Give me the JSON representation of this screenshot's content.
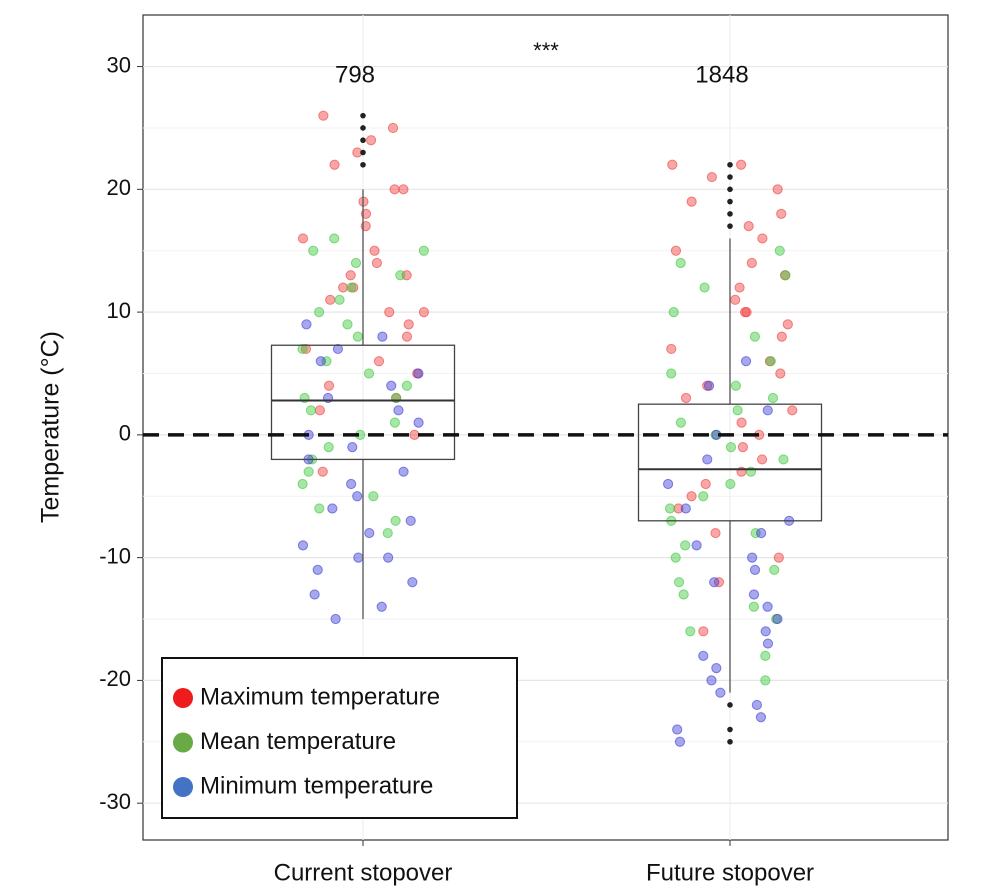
{
  "chart_data": {
    "type": "box",
    "y_label": "Temperature (°C)",
    "categories": [
      "Current stopover",
      "Future stopover"
    ],
    "n": [
      798,
      1848
    ],
    "annotation": "***",
    "hline": 0,
    "ylim": [
      -33,
      34.2
    ],
    "yticks": [
      -30,
      -20,
      -10,
      0,
      10,
      20,
      30
    ],
    "minor_yticks": [
      -25,
      -15,
      -5,
      5,
      15,
      25
    ],
    "grid": true,
    "legend_position": "lower left",
    "boxes": [
      {
        "q1": -2,
        "median": 2.8,
        "q3": 7.3,
        "whisker_low": -15,
        "whisker_high": 20,
        "outliers": [
          26,
          25,
          24,
          23,
          22
        ]
      },
      {
        "q1": -7,
        "median": -2.8,
        "q3": 2.5,
        "whisker_low": -21,
        "whisker_high": 16,
        "outliers": [
          22,
          21,
          20,
          19,
          18,
          17,
          -22,
          -24,
          -25
        ]
      }
    ],
    "series": [
      {
        "name": "Maximum temperature",
        "color": "#f03b3b",
        "legend_color": "#ee1c1c",
        "values": [
          [
            26,
            25,
            24,
            23,
            22,
            20,
            20,
            19,
            18,
            17,
            16,
            15,
            14,
            13,
            13,
            12,
            12,
            11,
            10,
            10,
            9,
            8,
            7,
            6,
            5,
            4,
            3,
            2,
            0,
            -3
          ],
          [
            22,
            22,
            21,
            20,
            19,
            18,
            17,
            16,
            15,
            14,
            13,
            12,
            11,
            10,
            10,
            9,
            8,
            7,
            6,
            5,
            4,
            3,
            2,
            1,
            0,
            -1,
            -2,
            -3,
            -4,
            -5,
            -6,
            -8,
            -10,
            -12,
            -16
          ]
        ]
      },
      {
        "name": "Mean temperature",
        "color": "#3cc83c",
        "legend_color": "#6aaa46",
        "values": [
          [
            16,
            15,
            15,
            14,
            13,
            12,
            11,
            10,
            9,
            8,
            7,
            6,
            5,
            4,
            3,
            3,
            2,
            1,
            0,
            -1,
            -2,
            -3,
            -4,
            -5,
            -6,
            -7,
            -8
          ],
          [
            15,
            14,
            13,
            12,
            10,
            8,
            6,
            5,
            4,
            3,
            2,
            1,
            0,
            -1,
            -2,
            -3,
            -4,
            -5,
            -6,
            -7,
            -8,
            -9,
            -10,
            -11,
            -12,
            -13,
            -14,
            -15,
            -16,
            -18,
            -20
          ]
        ]
      },
      {
        "name": "Minimum temperature",
        "color": "#3b3bd6",
        "legend_color": "#4472c4",
        "values": [
          [
            9,
            8,
            7,
            6,
            5,
            4,
            3,
            2,
            1,
            0,
            -1,
            -2,
            -3,
            -4,
            -5,
            -6,
            -7,
            -8,
            -9,
            -10,
            -10,
            -11,
            -12,
            -13,
            -14,
            -15
          ],
          [
            6,
            4,
            2,
            0,
            -2,
            -4,
            -6,
            -7,
            -8,
            -9,
            -10,
            -11,
            -12,
            -13,
            -14,
            -15,
            -16,
            -17,
            -18,
            -19,
            -20,
            -21,
            -22,
            -23,
            -24,
            -25
          ]
        ]
      }
    ]
  }
}
